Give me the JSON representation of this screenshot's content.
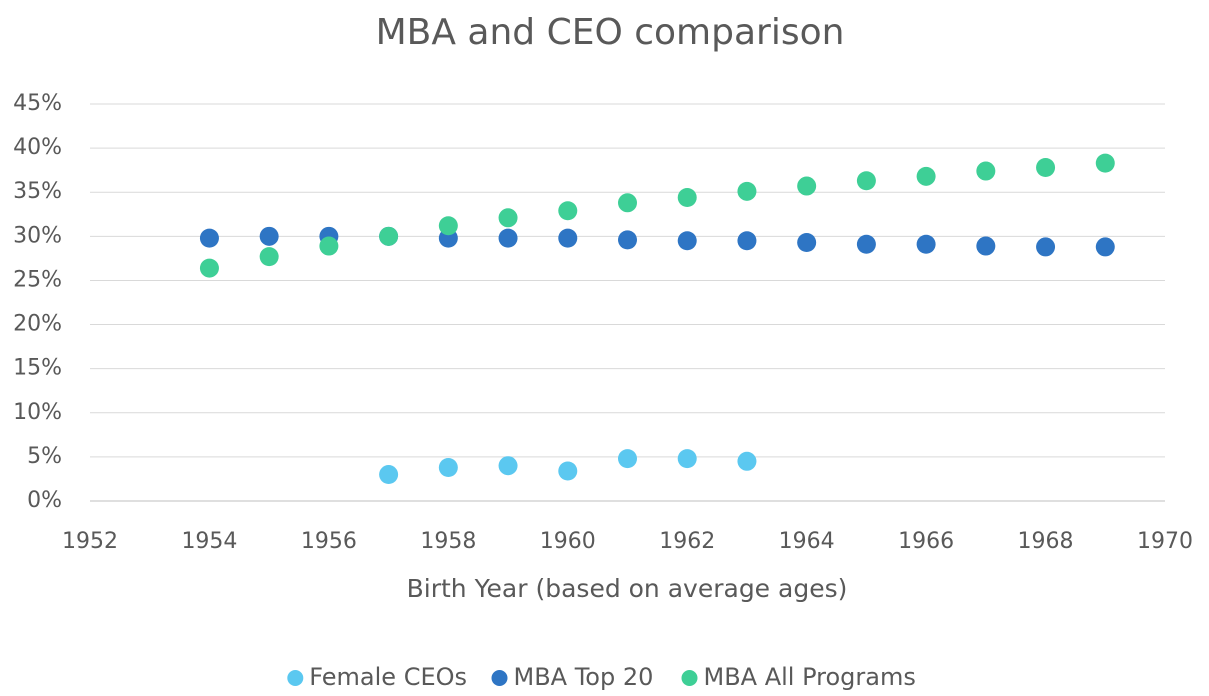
{
  "chart_data": {
    "type": "scatter",
    "title": "MBA and CEO comparison",
    "x_label": "Birth Year (based on average ages)",
    "xlim": [
      1952,
      1970
    ],
    "xticks": [
      1952,
      1954,
      1956,
      1958,
      1960,
      1962,
      1964,
      1966,
      1968,
      1970
    ],
    "ylim": [
      0,
      45
    ],
    "yticks": [
      {
        "value": 0,
        "label": "0%"
      },
      {
        "value": 5,
        "label": "5%"
      },
      {
        "value": 10,
        "label": "10%"
      },
      {
        "value": 15,
        "label": "15%"
      },
      {
        "value": 20,
        "label": "20%"
      },
      {
        "value": 25,
        "label": "25%"
      },
      {
        "value": 30,
        "label": "30%"
      },
      {
        "value": 35,
        "label": "35%"
      },
      {
        "value": 40,
        "label": "40%"
      },
      {
        "value": 45,
        "label": "45%"
      }
    ],
    "grid": true,
    "legend": "bottom",
    "series": [
      {
        "name": "Female CEOs",
        "color": "#5bc8f0",
        "x": [
          1957,
          1958,
          1959,
          1960,
          1961,
          1962,
          1963
        ],
        "values": [
          3.0,
          3.8,
          4.0,
          3.4,
          4.8,
          4.8,
          4.5
        ]
      },
      {
        "name": "MBA Top 20",
        "color": "#2e75c4",
        "x": [
          1954,
          1955,
          1956,
          1957,
          1958,
          1959,
          1960,
          1961,
          1962,
          1963,
          1964,
          1965,
          1966,
          1967,
          1968,
          1969
        ],
        "values": [
          29.8,
          30.0,
          30.0,
          30.0,
          29.8,
          29.8,
          29.8,
          29.6,
          29.5,
          29.5,
          29.3,
          29.1,
          29.1,
          28.9,
          28.8,
          28.8
        ]
      },
      {
        "name": "MBA All Programs",
        "color": "#3ecf96",
        "x": [
          1954,
          1955,
          1956,
          1957,
          1958,
          1959,
          1960,
          1961,
          1962,
          1963,
          1964,
          1965,
          1966,
          1967,
          1968,
          1969
        ],
        "values": [
          26.4,
          27.7,
          28.9,
          30.0,
          31.2,
          32.1,
          32.9,
          33.8,
          34.4,
          35.1,
          35.7,
          36.3,
          36.8,
          37.4,
          37.8,
          38.3
        ]
      }
    ]
  }
}
